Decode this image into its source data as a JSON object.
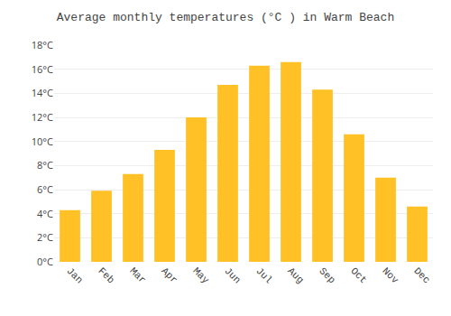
{
  "chart_data": {
    "type": "bar",
    "title": "Average monthly temperatures (°C ) in Warm Beach",
    "categories": [
      "Jan",
      "Feb",
      "Mar",
      "Apr",
      "May",
      "Jun",
      "Jul",
      "Aug",
      "Sep",
      "Oct",
      "Nov",
      "Dec"
    ],
    "values": [
      4.3,
      5.9,
      7.3,
      9.3,
      12.0,
      14.7,
      16.3,
      16.6,
      14.3,
      10.6,
      7.0,
      4.6
    ],
    "color": "#FFC125",
    "ylim": [
      0,
      18
    ],
    "yticks": [
      {
        "value": 0,
        "label": "0°C"
      },
      {
        "value": 2,
        "label": "2°C"
      },
      {
        "value": 4,
        "label": "4°C"
      },
      {
        "value": 6,
        "label": "6°C"
      },
      {
        "value": 8,
        "label": "8°C"
      },
      {
        "value": 10,
        "label": "10°C"
      },
      {
        "value": 12,
        "label": "12°C"
      },
      {
        "value": 14,
        "label": "14°C"
      },
      {
        "value": 16,
        "label": "16°C"
      },
      {
        "value": 18,
        "label": "18°C"
      }
    ],
    "grid": true
  }
}
